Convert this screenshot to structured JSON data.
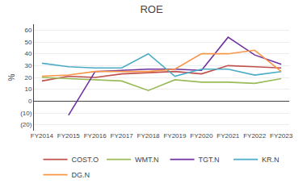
{
  "chart_data": {
    "type": "line",
    "title": "ROE",
    "ylabel": "%",
    "categories": [
      "FY2014",
      "FY2015",
      "FY2016",
      "FY2017",
      "FY2018",
      "FY2019",
      "FY2020",
      "FY2021",
      "FY2022",
      "FY2023"
    ],
    "series": [
      {
        "name": "COST.O",
        "color": "#c0504d",
        "values": [
          17,
          21,
          20,
          23,
          24,
          25,
          23,
          30,
          29,
          28
        ]
      },
      {
        "name": "WMT.N",
        "color": "#9bbb59",
        "values": [
          20,
          19,
          18,
          17,
          9,
          18,
          16,
          16,
          15,
          19
        ]
      },
      {
        "name": "TGT.N",
        "color": "#7030a0",
        "values": [
          null,
          -12,
          25,
          26,
          27,
          27,
          26,
          54,
          39,
          31
        ]
      },
      {
        "name": "KR.N",
        "color": "#4bacc6",
        "values": [
          32,
          29,
          28,
          28,
          40,
          21,
          27,
          27,
          22,
          25
        ]
      },
      {
        "name": "DG.N",
        "color": "#f79646",
        "values": [
          21,
          22,
          25,
          25,
          25,
          27,
          40,
          40,
          43,
          25
        ]
      }
    ],
    "ylim": [
      -25,
      65
    ],
    "yticks": [
      {
        "value": -20,
        "label": "(20)"
      },
      {
        "value": -10,
        "label": "(10)"
      },
      0,
      10,
      20,
      30,
      40,
      50,
      60
    ],
    "grid": true,
    "legend": "bottom"
  }
}
